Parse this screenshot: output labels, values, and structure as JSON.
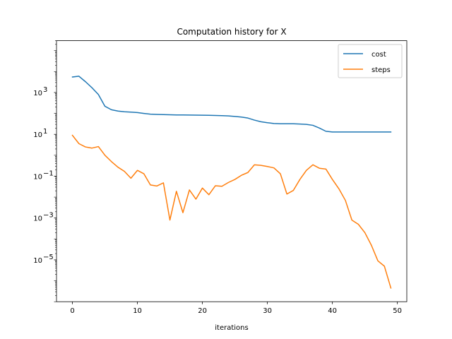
{
  "chart_data": {
    "type": "line",
    "title": "Computation history for X",
    "xlabel": "iterations",
    "ylabel": "",
    "yscale": "log",
    "xlim": [
      -2.45,
      51.45
    ],
    "ylim": [
      1e-07,
      300000.0
    ],
    "x_ticks": [
      0,
      10,
      20,
      30,
      40,
      50
    ],
    "y_ticks": [
      {
        "value": 1000,
        "label": "10",
        "exp": "3"
      },
      {
        "value": 10,
        "label": "10",
        "exp": "1"
      },
      {
        "value": 0.1,
        "label": "10",
        "exp": "−1"
      },
      {
        "value": 0.001,
        "label": "10",
        "exp": "−3"
      },
      {
        "value": 1e-05,
        "label": "10",
        "exp": "−5"
      }
    ],
    "grid": false,
    "legend_position": "upper right",
    "x": [
      0,
      1,
      2,
      3,
      4,
      5,
      6,
      7,
      8,
      9,
      10,
      11,
      12,
      13,
      14,
      15,
      16,
      17,
      18,
      19,
      20,
      21,
      22,
      23,
      24,
      25,
      26,
      27,
      28,
      29,
      30,
      31,
      32,
      33,
      34,
      35,
      36,
      37,
      38,
      39,
      40,
      41,
      42,
      43,
      44,
      45,
      46,
      47,
      48,
      49
    ],
    "series": [
      {
        "name": "cost",
        "color": "#1f77b4",
        "values": [
          5500,
          6000,
          3300,
          1700,
          800,
          220,
          150,
          130,
          120,
          115,
          110,
          100,
          92,
          90,
          88,
          86,
          85,
          85,
          84,
          83,
          82,
          81,
          80,
          78,
          76,
          72,
          67,
          60,
          48,
          40,
          36,
          33,
          32,
          32,
          32,
          31,
          30,
          27,
          20,
          14,
          13,
          13,
          13,
          13,
          13,
          13,
          13,
          13,
          13,
          13
        ]
      },
      {
        "name": "steps",
        "color": "#ff7f0e",
        "values": [
          9,
          3.6,
          2.5,
          2.2,
          2.6,
          1.0,
          0.5,
          0.27,
          0.17,
          0.08,
          0.19,
          0.13,
          0.038,
          0.034,
          0.048,
          0.0008,
          0.019,
          0.0018,
          0.022,
          0.008,
          0.027,
          0.013,
          0.035,
          0.033,
          0.05,
          0.07,
          0.11,
          0.15,
          0.35,
          0.33,
          0.29,
          0.25,
          0.13,
          0.014,
          0.021,
          0.07,
          0.19,
          0.35,
          0.24,
          0.22,
          0.07,
          0.025,
          0.007,
          0.0008,
          0.0005,
          0.0002,
          5e-05,
          9e-06,
          5e-06,
          4.5e-07
        ]
      }
    ]
  }
}
